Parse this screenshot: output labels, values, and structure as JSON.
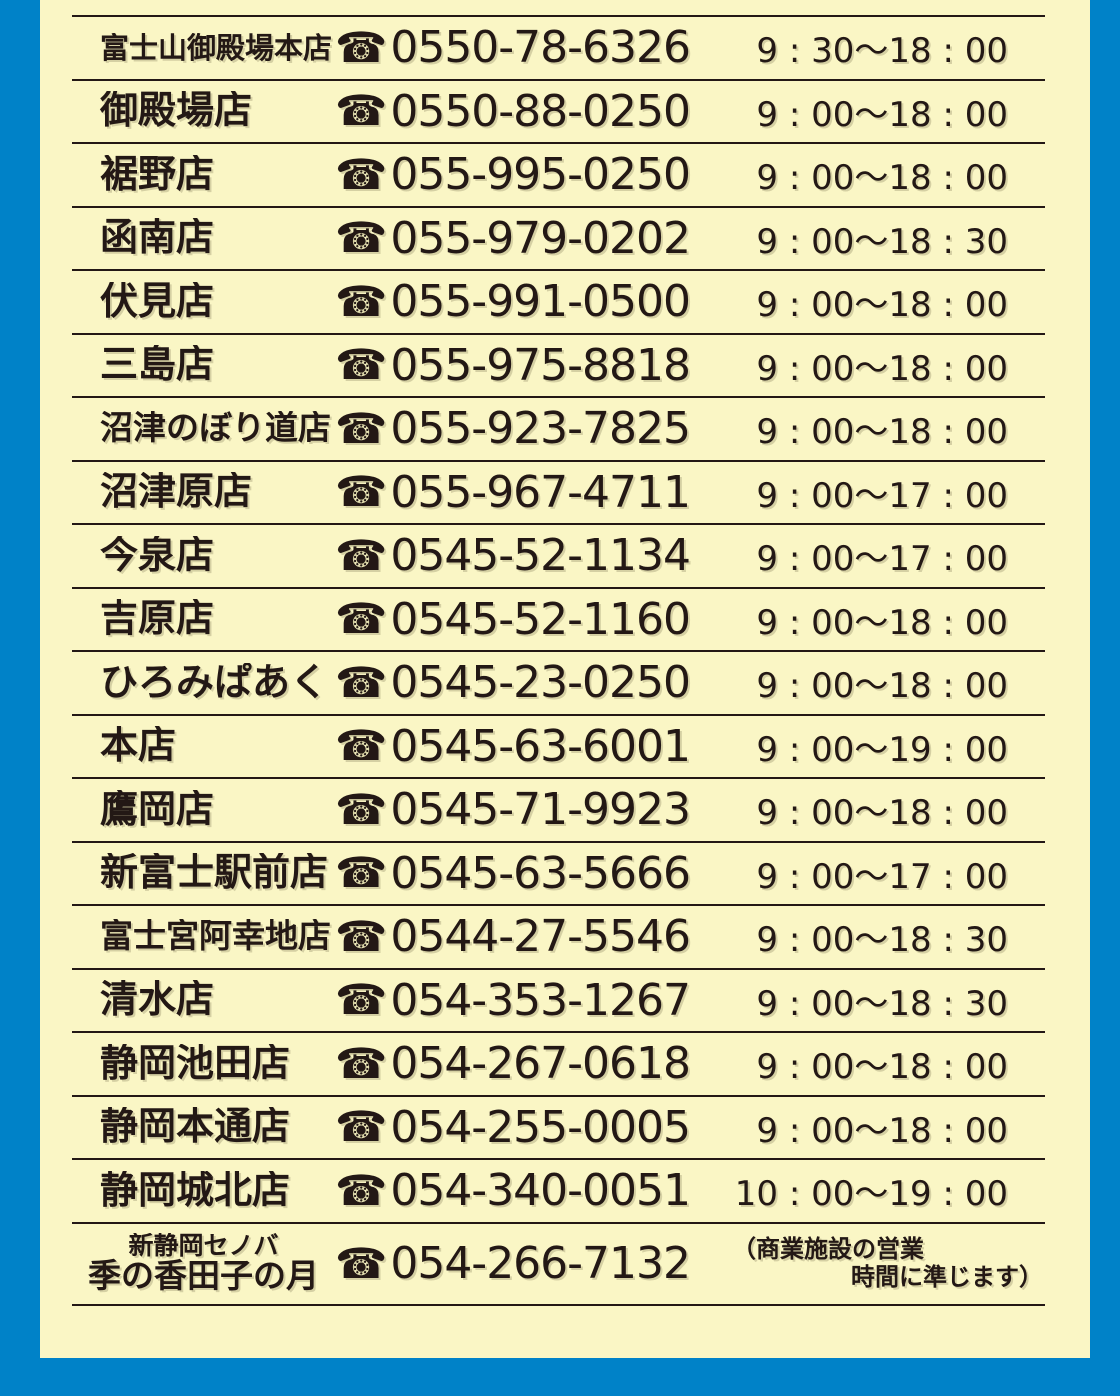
{
  "page": {
    "background_color": "#0082C8",
    "panel_color": "#FAF6C5",
    "ink_color": "#231815"
  },
  "phone_icon": "☎",
  "stores": [
    {
      "name": "富士山御殿場本店",
      "phone": "0550-78-6326",
      "hours": "9 : 30〜18 : 00"
    },
    {
      "name": "御殿場店",
      "phone": "0550-88-0250",
      "hours": "9 : 00〜18 : 00"
    },
    {
      "name": "裾野店",
      "phone": "055-995-0250",
      "hours": "9 : 00〜18 : 00"
    },
    {
      "name": "函南店",
      "phone": "055-979-0202",
      "hours": "9 : 00〜18 : 30"
    },
    {
      "name": "伏見店",
      "phone": "055-991-0500",
      "hours": "9 : 00〜18 : 00"
    },
    {
      "name": "三島店",
      "phone": "055-975-8818",
      "hours": "9 : 00〜18 : 00"
    },
    {
      "name": "沼津のぼり道店",
      "phone": "055-923-7825",
      "hours": "9 : 00〜18 : 00"
    },
    {
      "name": "沼津原店",
      "phone": "055-967-4711",
      "hours": "9 : 00〜17 : 00"
    },
    {
      "name": "今泉店",
      "phone": "0545-52-1134",
      "hours": "9 : 00〜17 : 00"
    },
    {
      "name": "吉原店",
      "phone": "0545-52-1160",
      "hours": "9 : 00〜18 : 00"
    },
    {
      "name": "ひろみぱあく",
      "phone": "0545-23-0250",
      "hours": "9 : 00〜18 : 00"
    },
    {
      "name": "本店",
      "phone": "0545-63-6001",
      "hours": "9 : 00〜19 : 00"
    },
    {
      "name": "鷹岡店",
      "phone": "0545-71-9923",
      "hours": "9 : 00〜18 : 00"
    },
    {
      "name": "新富士駅前店",
      "phone": "0545-63-5666",
      "hours": "9 : 00〜17 : 00"
    },
    {
      "name": "富士宮阿幸地店",
      "phone": "0544-27-5546",
      "hours": "9 : 00〜18 : 30"
    },
    {
      "name": "清水店",
      "phone": "054-353-1267",
      "hours": "9 : 00〜18 : 30"
    },
    {
      "name": "静岡池田店",
      "phone": "054-267-0618",
      "hours": "9 : 00〜18 : 00"
    },
    {
      "name": "静岡本通店",
      "phone": "054-255-0005",
      "hours": "9 : 00〜18 : 00"
    },
    {
      "name": "静岡城北店",
      "phone": "054-340-0051",
      "hours": "10 : 00〜19 : 00"
    },
    {
      "name_sub": "新静岡セノバ",
      "name": "季の香田子の月",
      "phone": "054-266-7132",
      "note_line1": "（商業施設の営業",
      "note_line2": "時間に準じます）"
    }
  ]
}
